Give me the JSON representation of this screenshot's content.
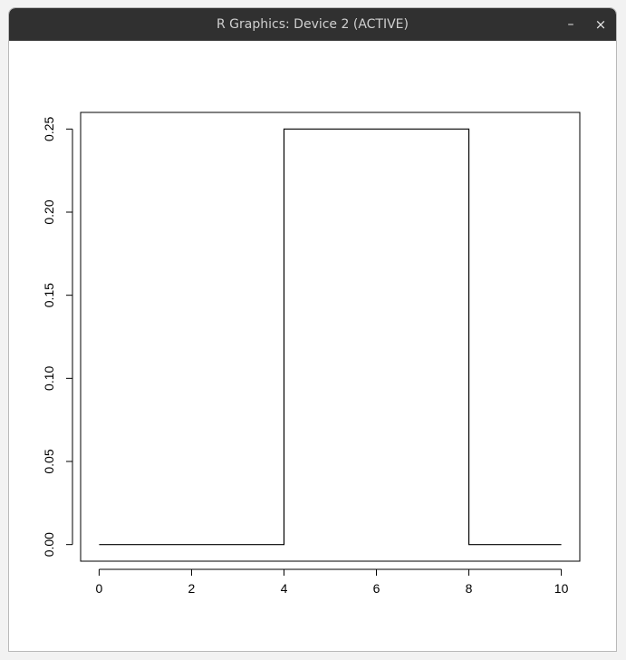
{
  "window": {
    "title": "R Graphics: Device 2 (ACTIVE)",
    "minimize_glyph": "–",
    "close_glyph": "×"
  },
  "chart_data": {
    "type": "line",
    "step": true,
    "x": [
      0,
      4,
      4,
      8,
      8,
      10
    ],
    "y": [
      0,
      0,
      0.25,
      0.25,
      0,
      0
    ],
    "xlim": [
      -0.4,
      10.4
    ],
    "ylim": [
      -0.01,
      0.26
    ],
    "xticks": [
      0,
      2,
      4,
      6,
      8,
      10
    ],
    "yticks": [
      "0.00",
      "0.05",
      "0.10",
      "0.15",
      "0.20",
      "0.25"
    ],
    "title": "",
    "xlabel": "",
    "ylabel": "",
    "grid": false,
    "line_color": "#000000"
  }
}
